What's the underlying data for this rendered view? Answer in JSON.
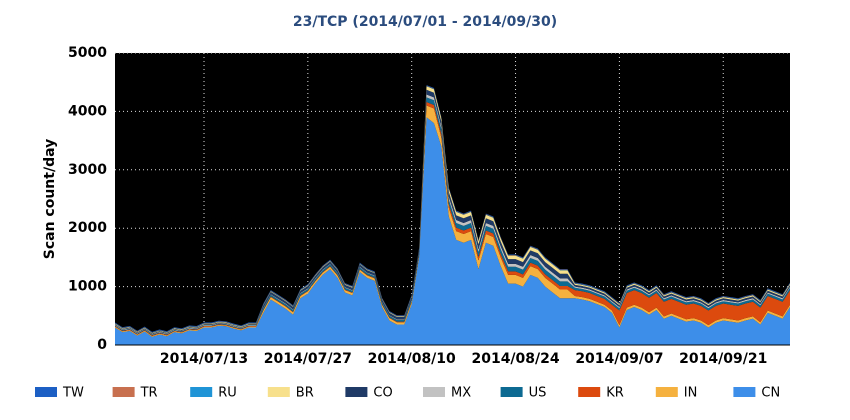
{
  "chart_data": {
    "type": "stacked-area",
    "title": "23/TCP (2014/07/01 - 2014/09/30)",
    "y_label": "Scan count/day",
    "x": [
      "2014/07/01",
      "2014/07/02",
      "2014/07/03",
      "2014/07/04",
      "2014/07/05",
      "2014/07/06",
      "2014/07/07",
      "2014/07/08",
      "2014/07/09",
      "2014/07/10",
      "2014/07/11",
      "2014/07/12",
      "2014/07/13",
      "2014/07/14",
      "2014/07/15",
      "2014/07/16",
      "2014/07/17",
      "2014/07/18",
      "2014/07/19",
      "2014/07/20",
      "2014/07/21",
      "2014/07/22",
      "2014/07/23",
      "2014/07/24",
      "2014/07/25",
      "2014/07/26",
      "2014/07/27",
      "2014/07/28",
      "2014/07/29",
      "2014/07/30",
      "2014/07/31",
      "2014/08/01",
      "2014/08/02",
      "2014/08/03",
      "2014/08/04",
      "2014/08/05",
      "2014/08/06",
      "2014/08/07",
      "2014/08/08",
      "2014/08/09",
      "2014/08/10",
      "2014/08/11",
      "2014/08/12",
      "2014/08/13",
      "2014/08/14",
      "2014/08/15",
      "2014/08/16",
      "2014/08/17",
      "2014/08/18",
      "2014/08/19",
      "2014/08/20",
      "2014/08/21",
      "2014/08/22",
      "2014/08/23",
      "2014/08/24",
      "2014/08/25",
      "2014/08/26",
      "2014/08/27",
      "2014/08/28",
      "2014/08/29",
      "2014/08/30",
      "2014/08/31",
      "2014/09/01",
      "2014/09/02",
      "2014/09/03",
      "2014/09/04",
      "2014/09/05",
      "2014/09/06",
      "2014/09/07",
      "2014/09/08",
      "2014/09/09",
      "2014/09/10",
      "2014/09/11",
      "2014/09/12",
      "2014/09/13",
      "2014/09/14",
      "2014/09/15",
      "2014/09/16",
      "2014/09/17",
      "2014/09/18",
      "2014/09/19",
      "2014/09/20",
      "2014/09/21",
      "2014/09/22",
      "2014/09/23",
      "2014/09/24",
      "2014/09/25",
      "2014/09/26",
      "2014/09/27",
      "2014/09/28",
      "2014/09/29",
      "2014/09/30"
    ],
    "xlim": [
      "2014/07/01",
      "2014/09/30"
    ],
    "xticks": [
      "2014/07/13",
      "2014/07/27",
      "2014/08/10",
      "2014/08/24",
      "2014/09/07",
      "2014/09/21"
    ],
    "ylim": [
      0,
      5000
    ],
    "yticks": [
      0,
      1000,
      2000,
      3000,
      4000,
      5000
    ],
    "grid": true,
    "series": [
      {
        "name": "TW",
        "color": "#1c5fc4",
        "values": [
          10,
          10,
          10,
          10,
          10,
          10,
          10,
          10,
          10,
          10,
          10,
          10,
          10,
          10,
          10,
          10,
          10,
          10,
          10,
          10,
          10,
          10,
          10,
          10,
          10,
          10,
          10,
          10,
          10,
          10,
          10,
          10,
          10,
          10,
          10,
          10,
          10,
          10,
          10,
          10,
          10,
          10,
          10,
          10,
          10,
          10,
          10,
          10,
          10,
          10,
          10,
          10,
          10,
          10,
          10,
          10,
          10,
          10,
          10,
          10,
          10,
          10,
          10,
          10,
          10,
          10,
          10,
          10,
          10,
          10,
          10,
          10,
          10,
          10,
          10,
          10,
          10,
          10,
          10,
          10,
          10,
          10,
          10,
          10,
          10,
          10,
          10,
          10,
          10,
          10,
          10,
          10
        ]
      },
      {
        "name": "TR",
        "color": "#c8704f",
        "values": [
          5,
          5,
          5,
          5,
          5,
          5,
          5,
          5,
          5,
          5,
          5,
          5,
          5,
          5,
          5,
          5,
          5,
          5,
          5,
          5,
          5,
          5,
          5,
          5,
          5,
          5,
          5,
          5,
          5,
          5,
          5,
          5,
          5,
          5,
          5,
          5,
          5,
          5,
          5,
          5,
          5,
          5,
          5,
          5,
          5,
          5,
          5,
          5,
          5,
          5,
          5,
          5,
          5,
          5,
          5,
          5,
          5,
          5,
          5,
          5,
          5,
          5,
          5,
          5,
          5,
          5,
          5,
          5,
          5,
          5,
          5,
          5,
          5,
          5,
          5,
          5,
          5,
          5,
          5,
          5,
          5,
          5,
          5,
          5,
          5,
          5,
          5,
          5,
          5,
          5,
          5,
          5
        ]
      },
      {
        "name": "RU",
        "color": "#1f94d6",
        "values": [
          5,
          5,
          5,
          5,
          5,
          5,
          5,
          5,
          5,
          5,
          5,
          5,
          5,
          5,
          5,
          5,
          5,
          5,
          5,
          5,
          5,
          5,
          5,
          5,
          5,
          5,
          5,
          5,
          5,
          5,
          5,
          5,
          5,
          5,
          5,
          5,
          5,
          5,
          5,
          5,
          5,
          5,
          5,
          5,
          5,
          5,
          5,
          5,
          5,
          5,
          5,
          5,
          5,
          5,
          5,
          5,
          5,
          5,
          5,
          5,
          5,
          5,
          5,
          5,
          5,
          5,
          5,
          5,
          5,
          5,
          5,
          5,
          5,
          5,
          5,
          5,
          5,
          5,
          5,
          5,
          5,
          5,
          5,
          5,
          5,
          5,
          5,
          5,
          5,
          5,
          5,
          5
        ]
      },
      {
        "name": "BR",
        "color": "#f7e08c",
        "values": [
          10,
          10,
          10,
          10,
          10,
          10,
          10,
          10,
          10,
          10,
          10,
          10,
          10,
          10,
          10,
          10,
          10,
          10,
          10,
          10,
          10,
          10,
          10,
          10,
          10,
          10,
          10,
          10,
          10,
          10,
          10,
          10,
          10,
          10,
          10,
          10,
          10,
          10,
          10,
          10,
          10,
          10,
          60,
          60,
          60,
          60,
          60,
          60,
          60,
          60,
          60,
          60,
          60,
          60,
          60,
          60,
          60,
          60,
          60,
          60,
          60,
          60,
          20,
          20,
          20,
          20,
          20,
          20,
          20,
          20,
          20,
          20,
          20,
          20,
          20,
          20,
          20,
          20,
          20,
          20,
          20,
          20,
          20,
          20,
          20,
          20,
          20,
          20,
          20,
          20,
          20,
          20
        ]
      },
      {
        "name": "CO",
        "color": "#1f3a66",
        "values": [
          10,
          10,
          10,
          10,
          10,
          10,
          10,
          10,
          10,
          10,
          10,
          10,
          10,
          10,
          10,
          10,
          10,
          10,
          10,
          10,
          40,
          40,
          40,
          40,
          40,
          40,
          40,
          40,
          40,
          40,
          40,
          40,
          40,
          40,
          40,
          40,
          40,
          40,
          40,
          40,
          40,
          40,
          80,
          80,
          80,
          80,
          80,
          80,
          80,
          80,
          80,
          80,
          80,
          80,
          80,
          80,
          80,
          80,
          80,
          80,
          80,
          80,
          30,
          30,
          30,
          30,
          30,
          30,
          30,
          30,
          30,
          30,
          30,
          30,
          30,
          30,
          30,
          30,
          30,
          30,
          30,
          30,
          30,
          30,
          30,
          30,
          30,
          30,
          30,
          30,
          30,
          30
        ]
      },
      {
        "name": "MX",
        "color": "#c2c2c2",
        "values": [
          10,
          10,
          10,
          10,
          10,
          10,
          10,
          10,
          10,
          10,
          10,
          10,
          10,
          10,
          10,
          10,
          10,
          10,
          10,
          10,
          10,
          10,
          10,
          10,
          10,
          10,
          10,
          10,
          10,
          10,
          10,
          10,
          10,
          10,
          10,
          10,
          10,
          10,
          10,
          10,
          10,
          10,
          50,
          50,
          50,
          50,
          50,
          50,
          50,
          50,
          50,
          50,
          50,
          50,
          50,
          50,
          50,
          50,
          50,
          50,
          50,
          50,
          20,
          20,
          20,
          20,
          20,
          20,
          20,
          20,
          20,
          20,
          20,
          20,
          20,
          20,
          20,
          20,
          20,
          20,
          20,
          20,
          20,
          20,
          20,
          20,
          20,
          20,
          20,
          20,
          20,
          20
        ]
      },
      {
        "name": "US",
        "color": "#0d6a92",
        "values": [
          10,
          10,
          10,
          10,
          10,
          10,
          10,
          10,
          10,
          10,
          10,
          10,
          10,
          10,
          10,
          10,
          10,
          10,
          10,
          10,
          30,
          30,
          30,
          30,
          30,
          30,
          30,
          30,
          30,
          30,
          30,
          30,
          30,
          30,
          30,
          30,
          30,
          30,
          30,
          30,
          30,
          30,
          80,
          80,
          80,
          80,
          80,
          80,
          80,
          80,
          80,
          80,
          80,
          80,
          80,
          80,
          80,
          80,
          80,
          80,
          80,
          80,
          40,
          40,
          40,
          40,
          40,
          40,
          40,
          40,
          40,
          40,
          40,
          40,
          40,
          40,
          40,
          40,
          40,
          40,
          40,
          40,
          40,
          40,
          40,
          40,
          40,
          40,
          40,
          40,
          40,
          40
        ]
      },
      {
        "name": "KR",
        "color": "#dc4a0e",
        "values": [
          10,
          10,
          10,
          10,
          10,
          10,
          10,
          10,
          10,
          10,
          10,
          10,
          10,
          10,
          10,
          10,
          10,
          10,
          10,
          10,
          10,
          10,
          10,
          10,
          10,
          10,
          10,
          10,
          10,
          10,
          10,
          10,
          10,
          10,
          10,
          10,
          10,
          10,
          10,
          10,
          10,
          10,
          60,
          60,
          60,
          60,
          60,
          60,
          60,
          60,
          60,
          60,
          60,
          60,
          60,
          60,
          60,
          60,
          60,
          60,
          60,
          60,
          100,
          100,
          100,
          100,
          100,
          100,
          250,
          250,
          250,
          250,
          250,
          250,
          250,
          250,
          250,
          250,
          250,
          250,
          250,
          250,
          250,
          250,
          250,
          250,
          250,
          250,
          250,
          250,
          250,
          250
        ]
      },
      {
        "name": "IN",
        "color": "#f5b13f",
        "values": [
          15,
          15,
          15,
          15,
          15,
          15,
          15,
          15,
          15,
          15,
          15,
          15,
          15,
          15,
          15,
          15,
          15,
          15,
          15,
          15,
          40,
          40,
          40,
          40,
          40,
          40,
          40,
          40,
          40,
          40,
          40,
          40,
          40,
          40,
          40,
          40,
          40,
          40,
          40,
          40,
          40,
          40,
          200,
          250,
          150,
          150,
          150,
          150,
          150,
          150,
          150,
          150,
          150,
          150,
          150,
          150,
          150,
          150,
          150,
          150,
          150,
          150,
          40,
          40,
          40,
          40,
          40,
          40,
          40,
          40,
          40,
          40,
          40,
          40,
          40,
          40,
          40,
          40,
          40,
          40,
          40,
          40,
          40,
          40,
          40,
          40,
          40,
          40,
          40,
          40,
          40,
          40
        ]
      },
      {
        "name": "CN",
        "color": "#3d8ee9",
        "values": [
          300,
          220,
          240,
          160,
          230,
          140,
          180,
          150,
          220,
          200,
          250,
          240,
          300,
          300,
          330,
          320,
          280,
          250,
          300,
          300,
          550,
          780,
          700,
          620,
          520,
          800,
          880,
          1050,
          1200,
          1300,
          1150,
          900,
          850,
          1250,
          1150,
          1100,
          650,
          420,
          350,
          350,
          700,
          1500,
          3900,
          3800,
          3400,
          2200,
          1800,
          1750,
          1800,
          1300,
          1750,
          1700,
          1350,
          1050,
          1050,
          1000,
          1200,
          1150,
          1000,
          900,
          800,
          800,
          800,
          780,
          750,
          700,
          650,
          550,
          300,
          600,
          650,
          600,
          520,
          600,
          450,
          500,
          450,
          400,
          420,
          380,
          300,
          380,
          420,
          400,
          380,
          420,
          450,
          350,
          550,
          500,
          450,
          650
        ]
      }
    ]
  }
}
